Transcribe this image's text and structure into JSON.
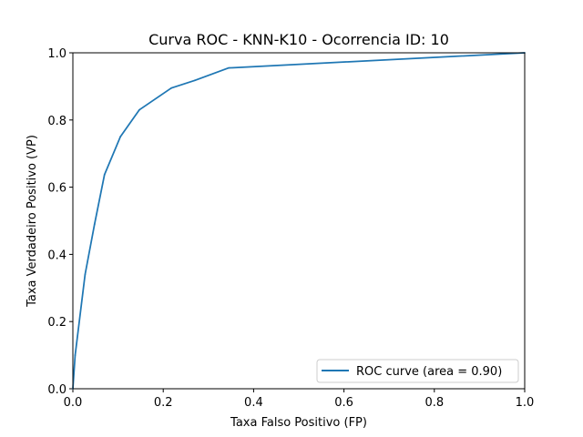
{
  "chart_data": {
    "type": "line",
    "title": "Curva ROC - KNN-K10 - Ocorrencia ID: 10",
    "xlabel": "Taxa Falso Positivo (FP)",
    "ylabel": "Taxa Verdadeiro Positivo (VP)",
    "xlim": [
      0.0,
      1.0
    ],
    "ylim": [
      0.0,
      1.0
    ],
    "xticks": [
      "0.0",
      "0.2",
      "0.4",
      "0.6",
      "0.8",
      "1.0"
    ],
    "yticks": [
      "0.0",
      "0.2",
      "0.4",
      "0.6",
      "0.8",
      "1.0"
    ],
    "grid": false,
    "legend": {
      "position": "lower-right"
    },
    "series": [
      {
        "name": "ROC curve (area = 0.90)",
        "color": "#1f77b4",
        "x": [
          0.0,
          0.005,
          0.027,
          0.048,
          0.07,
          0.105,
          0.147,
          0.218,
          0.27,
          0.345,
          1.0
        ],
        "y": [
          0.0,
          0.1,
          0.34,
          0.49,
          0.637,
          0.75,
          0.83,
          0.895,
          0.918,
          0.955,
          1.0
        ]
      }
    ]
  }
}
